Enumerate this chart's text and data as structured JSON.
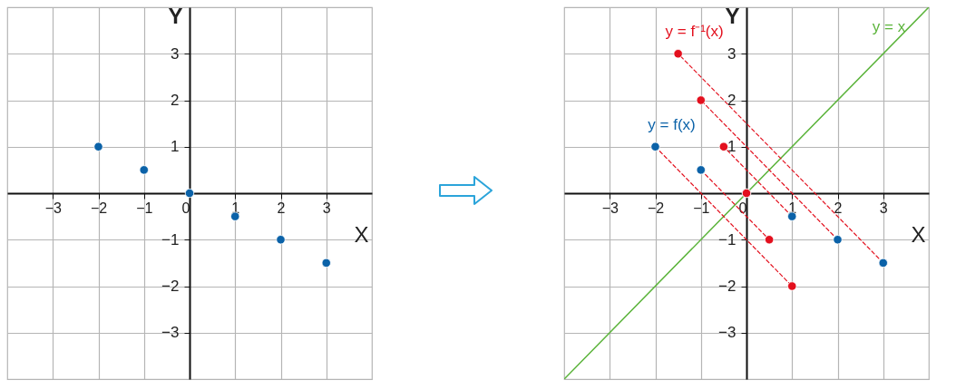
{
  "chart_data": [
    {
      "type": "scatter",
      "xlabel": "X",
      "ylabel": "Y",
      "xlim": [
        -4,
        4
      ],
      "ylim": [
        -4,
        4
      ],
      "xticks": [
        -3,
        -2,
        -1,
        0,
        1,
        2,
        3
      ],
      "yticks": [
        -3,
        -2,
        -1,
        {
          "value": 0,
          "label": null
        },
        1,
        2,
        3
      ],
      "grid": true,
      "marker": "circle",
      "series": [
        {
          "color": "#0b62a8",
          "x": [
            -2,
            -1,
            0,
            1,
            2,
            3
          ],
          "values": [
            1,
            0.5,
            0,
            -0.5,
            -1,
            -1.5
          ]
        }
      ]
    },
    {
      "type": "scatter",
      "xlabel": "X",
      "ylabel": "Y",
      "xlim": [
        -4,
        4
      ],
      "ylim": [
        -4,
        4
      ],
      "xticks": [
        -3,
        -2,
        -1,
        0,
        1,
        2,
        3
      ],
      "yticks": [
        -3,
        -2,
        -1,
        {
          "value": 0,
          "label": null
        },
        1,
        2,
        3
      ],
      "grid": true,
      "series": [
        {
          "type": "line",
          "name": "y = x",
          "color": "#5cb43c",
          "line_style": "solid",
          "x": [
            -4,
            4
          ],
          "values": [
            -4,
            4
          ]
        },
        {
          "type": "line",
          "color": "#e3101e",
          "line_style": "dashed",
          "x": [
            -2,
            1
          ],
          "values": [
            1,
            -2
          ]
        },
        {
          "type": "line",
          "color": "#e3101e",
          "line_style": "dashed",
          "x": [
            -1,
            0.5
          ],
          "values": [
            0.5,
            -1
          ]
        },
        {
          "type": "line",
          "color": "#e3101e",
          "line_style": "dashed",
          "x": [
            1,
            -0.5
          ],
          "values": [
            -0.5,
            1
          ]
        },
        {
          "type": "line",
          "color": "#e3101e",
          "line_style": "dashed",
          "x": [
            2,
            -1
          ],
          "values": [
            -1,
            2
          ]
        },
        {
          "type": "line",
          "color": "#e3101e",
          "line_style": "dashed",
          "x": [
            3,
            -1.5
          ],
          "values": [
            -1.5,
            3
          ]
        },
        {
          "name": "y = f(x)",
          "marker": "circle",
          "color": "#0b62a8",
          "x": [
            -2,
            -1,
            0,
            1,
            2,
            3
          ],
          "values": [
            1,
            0.5,
            0,
            -0.5,
            -1,
            -1.5
          ]
        },
        {
          "name": "y = f⁻¹(x)",
          "marker": "circle",
          "color": "#e3101e",
          "x": [
            -1.5,
            -1,
            -0.5,
            0,
            0.5,
            1
          ],
          "values": [
            3,
            2,
            1,
            0,
            -1,
            -2
          ]
        }
      ]
    }
  ]
}
